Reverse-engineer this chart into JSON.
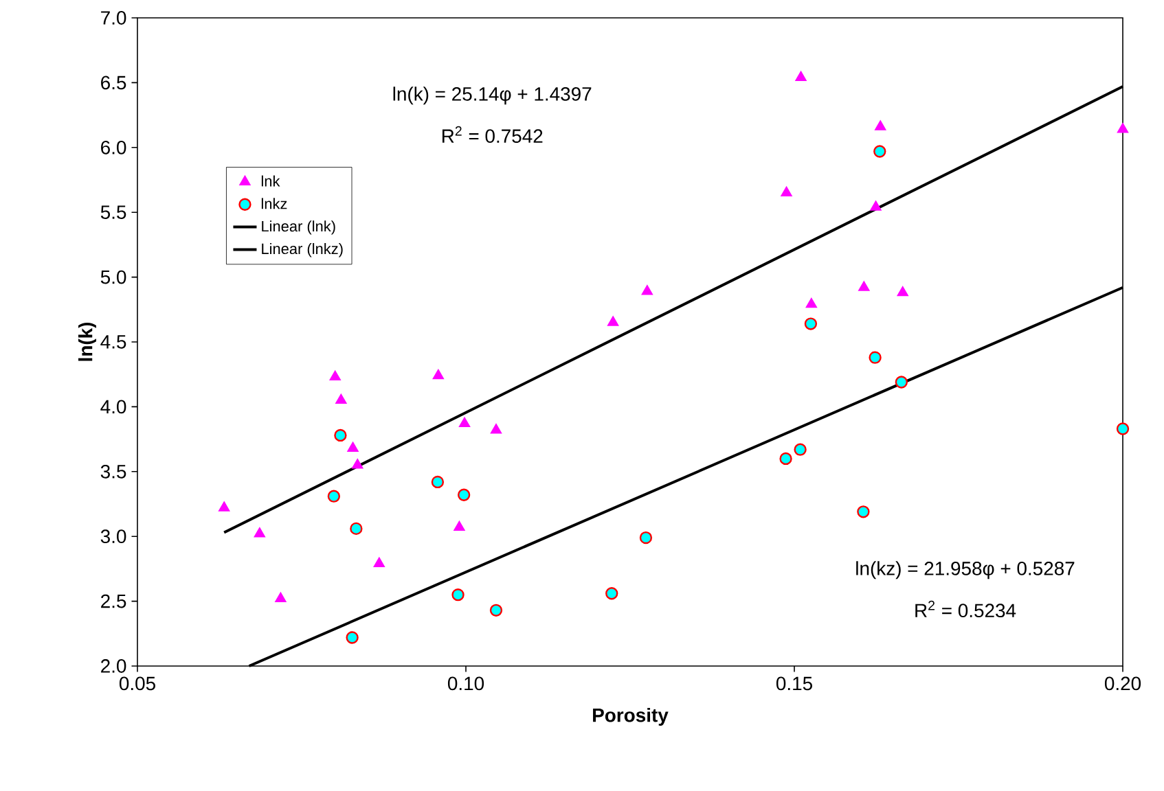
{
  "chart_data": {
    "type": "scatter",
    "xlabel": "Porosity",
    "ylabel": "ln(k)",
    "xlim": [
      0.05,
      0.2
    ],
    "ylim": [
      2.0,
      7.0
    ],
    "xticks": [
      {
        "value": 0.05,
        "label": "0.05"
      },
      {
        "value": 0.1,
        "label": "0.10"
      },
      {
        "value": 0.15,
        "label": "0.15"
      },
      {
        "value": 0.2,
        "label": "0.20"
      }
    ],
    "yticks": [
      {
        "value": 2.0,
        "label": "2.0"
      },
      {
        "value": 2.5,
        "label": "2.5"
      },
      {
        "value": 3.0,
        "label": "3.0"
      },
      {
        "value": 3.5,
        "label": "3.5"
      },
      {
        "value": 4.0,
        "label": "4.0"
      },
      {
        "value": 4.5,
        "label": "4.5"
      },
      {
        "value": 5.0,
        "label": "5.0"
      },
      {
        "value": 5.5,
        "label": "5.5"
      },
      {
        "value": 6.0,
        "label": "6.0"
      },
      {
        "value": 6.5,
        "label": "6.5"
      },
      {
        "value": 7.0,
        "label": "7.0"
      }
    ],
    "grid": false,
    "legend": "top left",
    "series": [
      {
        "name": "lnk",
        "marker": "triangle",
        "color": "#ff00ff",
        "x": [
          0.0632,
          0.0686,
          0.0718,
          0.0801,
          0.081,
          0.0828,
          0.0835,
          0.0868,
          0.0958,
          0.099,
          0.0998,
          0.1046,
          0.1224,
          0.1276,
          0.1488,
          0.151,
          0.1526,
          0.1606,
          0.1624,
          0.1631,
          0.1665,
          0.2
        ],
        "values": [
          3.22,
          3.02,
          2.52,
          4.23,
          4.05,
          3.68,
          3.55,
          2.79,
          4.24,
          3.07,
          3.87,
          3.82,
          4.65,
          4.89,
          5.65,
          6.54,
          4.79,
          4.92,
          5.54,
          6.16,
          4.88,
          6.14
        ]
      },
      {
        "name": "lnkz",
        "marker": "circle",
        "color": "#00ffff",
        "x": [
          0.0799,
          0.0809,
          0.0827,
          0.0833,
          0.0957,
          0.0988,
          0.0997,
          0.1046,
          0.1222,
          0.1274,
          0.1487,
          0.1509,
          0.1525,
          0.1605,
          0.1623,
          0.163,
          0.1663,
          0.2
        ],
        "values": [
          3.31,
          3.78,
          2.22,
          3.06,
          3.42,
          2.55,
          3.32,
          2.43,
          2.56,
          2.99,
          3.6,
          3.67,
          4.64,
          3.19,
          4.38,
          5.97,
          4.19,
          3.83
        ]
      },
      {
        "name": "Linear (lnk)",
        "type": "line",
        "marker": "none",
        "color": "#000000",
        "x": [
          0.0632,
          0.2
        ],
        "values": [
          3.03,
          6.47
        ]
      },
      {
        "name": "Linear (lnkz)",
        "type": "line",
        "marker": "none",
        "color": "#000000",
        "x": [
          0.067,
          0.2
        ],
        "values": [
          2.0,
          4.92
        ]
      }
    ],
    "annotations": [
      "ln(k) = 25.14φ + 1.4397",
      "R$^{2}$ = 0.7542",
      "ln(kz) = 21.958φ + 0.5287",
      "R$^{2}$ = 0.5234"
    ]
  }
}
